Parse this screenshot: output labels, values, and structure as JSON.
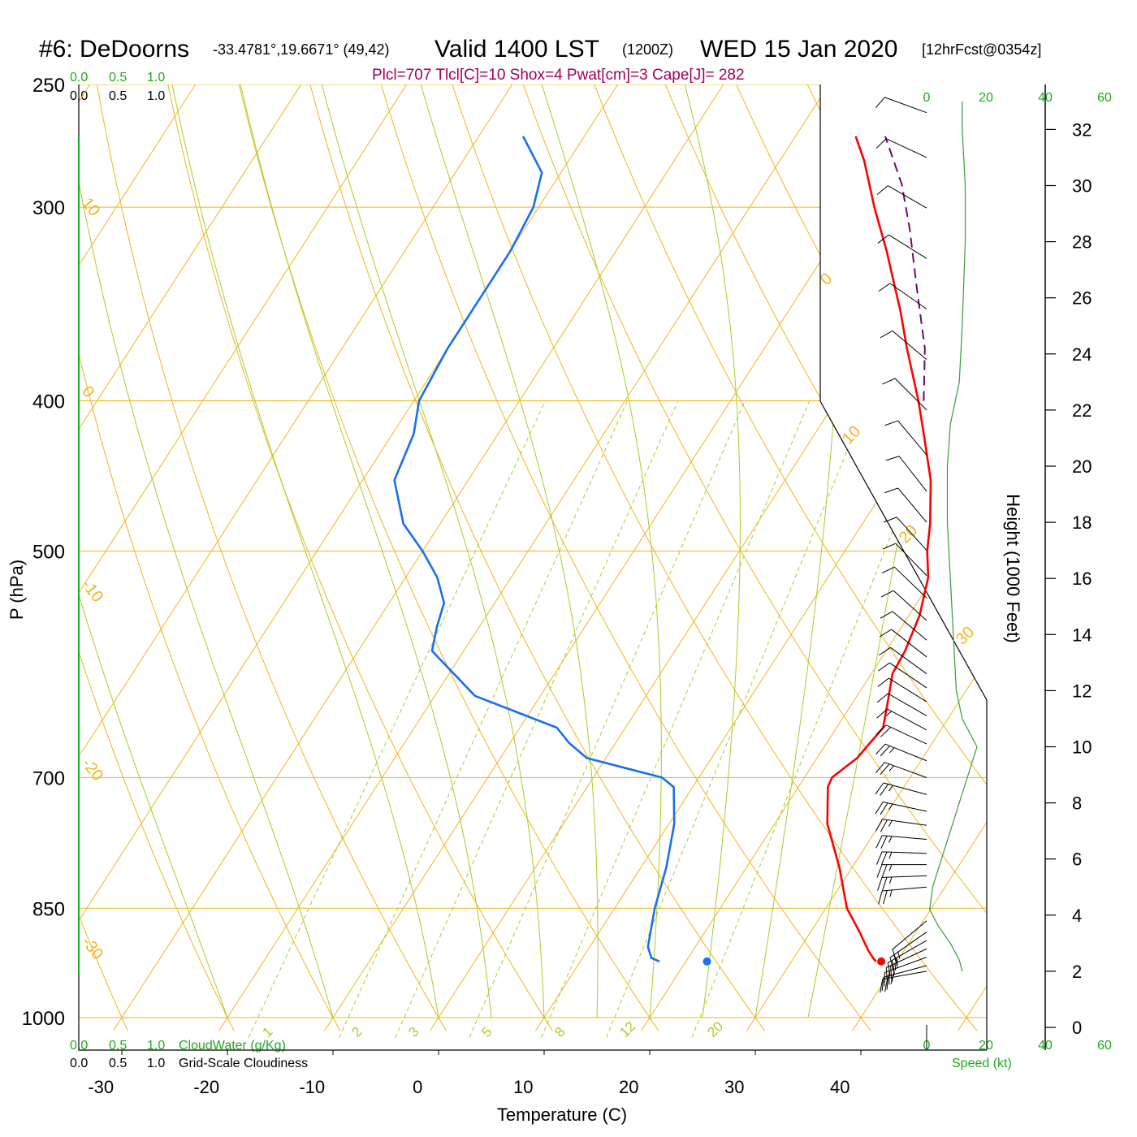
{
  "header": {
    "station": "#6: DeDoorns",
    "coords": "-33.4781°,19.6671° (49,42)",
    "valid": "Valid 1400 LST",
    "zulu": "(1200Z)",
    "date": "WED 15 Jan 2020",
    "forecast": "[12hrFcst@0354z]"
  },
  "indices": "Plcl=707 Tlcl[C]=10 Shox=4 Pwat[cm]=3 Cape[J]= 282",
  "top_scales": {
    "cloudwater_top": [
      "0.0",
      "0.5",
      "1.0"
    ],
    "cloudiness_top": [
      "0.0",
      "0.5",
      "1.0"
    ]
  },
  "bottom_scales": {
    "cloudwater_ticks": [
      "0.0",
      "0.5",
      "1.0"
    ],
    "cloudwater_label": "CloudWater (g/Kg)",
    "cloudiness_ticks": [
      "0.0",
      "0.5",
      "1.0"
    ],
    "cloudiness_label": "Grid-Scale Cloudiness"
  },
  "wind_scale": {
    "ticks": [
      "0",
      "20",
      "40",
      "60"
    ],
    "label": "Speed (kt)"
  },
  "colors": {
    "temperature": "#ff0000",
    "dewpoint": "#1a6ef0",
    "parcel": "#6a0a6a",
    "isotherm": "#f0b41e",
    "dry_adiabat": "#f0b41e",
    "moist_adiabat": "#a8cc28",
    "mixing_ratio": "#a8cc28",
    "cloud_water": "#1faa1f",
    "wind_speed": "#3a9a3a",
    "barbs": "#000000"
  },
  "chart_data": {
    "type": "skew-t log-p sounding",
    "xlabel": "Temperature (C)",
    "ylabel": "P (hPa)",
    "right_axis_label": "Height (1000 Feet)",
    "x_ticks": [
      -30,
      -20,
      -10,
      0,
      10,
      20,
      30,
      40
    ],
    "pressure_ticks": [
      250,
      300,
      400,
      500,
      700,
      850,
      1000
    ],
    "height_ticks": [
      0,
      2,
      4,
      6,
      8,
      10,
      12,
      14,
      16,
      18,
      20,
      22,
      24,
      26,
      28,
      30,
      32
    ],
    "isotherm_labels": [
      -30,
      -20,
      -10,
      0,
      10,
      20,
      30
    ],
    "dry_adiabat_labels": [
      -10,
      0,
      10,
      20,
      30,
      40
    ],
    "mixing_ratio_labels": [
      "1",
      "2",
      "3",
      "5",
      "8",
      "12",
      "20"
    ],
    "temperature": [
      {
        "p": 920,
        "t": 38.0
      },
      {
        "p": 915,
        "t": 37.5
      },
      {
        "p": 905,
        "t": 36.6
      },
      {
        "p": 880,
        "t": 34.6
      },
      {
        "p": 850,
        "t": 32.0
      },
      {
        "p": 800,
        "t": 28.8
      },
      {
        "p": 750,
        "t": 25.0
      },
      {
        "p": 710,
        "t": 22.8
      },
      {
        "p": 700,
        "t": 22.6
      },
      {
        "p": 680,
        "t": 23.8
      },
      {
        "p": 650,
        "t": 24.4
      },
      {
        "p": 620,
        "t": 23.0
      },
      {
        "p": 600,
        "t": 22.0
      },
      {
        "p": 580,
        "t": 21.8
      },
      {
        "p": 550,
        "t": 21.0
      },
      {
        "p": 520,
        "t": 19.5
      },
      {
        "p": 500,
        "t": 17.8
      },
      {
        "p": 480,
        "t": 16.4
      },
      {
        "p": 450,
        "t": 13.8
      },
      {
        "p": 420,
        "t": 10.3
      },
      {
        "p": 400,
        "t": 7.8
      },
      {
        "p": 370,
        "t": 3.5
      },
      {
        "p": 350,
        "t": 0.6
      },
      {
        "p": 320,
        "t": -4.4
      },
      {
        "p": 300,
        "t": -8.2
      },
      {
        "p": 280,
        "t": -12.0
      },
      {
        "p": 270,
        "t": -14.3
      }
    ],
    "dewpoint": [
      {
        "p": 920,
        "t": 17.5
      },
      {
        "p": 915,
        "t": 16.5
      },
      {
        "p": 900,
        "t": 15.5
      },
      {
        "p": 850,
        "t": 13.8
      },
      {
        "p": 800,
        "t": 12.4
      },
      {
        "p": 750,
        "t": 10.5
      },
      {
        "p": 710,
        "t": 8.2
      },
      {
        "p": 700,
        "t": 6.5
      },
      {
        "p": 680,
        "t": -1.8
      },
      {
        "p": 665,
        "t": -4.4
      },
      {
        "p": 650,
        "t": -6.5
      },
      {
        "p": 620,
        "t": -16.2
      },
      {
        "p": 580,
        "t": -23.0
      },
      {
        "p": 560,
        "t": -24.0
      },
      {
        "p": 540,
        "t": -24.8
      },
      {
        "p": 520,
        "t": -27.0
      },
      {
        "p": 500,
        "t": -30.0
      },
      {
        "p": 480,
        "t": -33.5
      },
      {
        "p": 450,
        "t": -37.0
      },
      {
        "p": 420,
        "t": -38.0
      },
      {
        "p": 400,
        "t": -39.5
      },
      {
        "p": 370,
        "t": -40.0
      },
      {
        "p": 340,
        "t": -40.0
      },
      {
        "p": 320,
        "t": -40.0
      },
      {
        "p": 300,
        "t": -40.5
      },
      {
        "p": 285,
        "t": -41.8
      },
      {
        "p": 270,
        "t": -45.8
      }
    ],
    "parcel": [
      {
        "p": 400,
        "t": 8.3
      },
      {
        "p": 370,
        "t": 5.2
      },
      {
        "p": 340,
        "t": 1.0
      },
      {
        "p": 310,
        "t": -3.5
      },
      {
        "p": 290,
        "t": -7.0
      },
      {
        "p": 270,
        "t": -11.5
      }
    ],
    "surface_temperature": {
      "p": 920,
      "t": 38.5
    },
    "surface_dewpoint": {
      "p": 920,
      "t": 22.0
    },
    "wind_barbs": [
      {
        "h": 2.0,
        "spd": 25,
        "dir": 280
      },
      {
        "h": 2.2,
        "spd": 25,
        "dir": 285
      },
      {
        "h": 2.5,
        "spd": 25,
        "dir": 290
      },
      {
        "h": 2.8,
        "spd": 25,
        "dir": 295
      },
      {
        "h": 3.1,
        "spd": 25,
        "dir": 300
      },
      {
        "h": 3.4,
        "spd": 25,
        "dir": 305
      },
      {
        "h": 3.8,
        "spd": 10,
        "dir": 310
      },
      {
        "h": 5.0,
        "spd": 25,
        "dir": 275
      },
      {
        "h": 5.4,
        "spd": 25,
        "dir": 272
      },
      {
        "h": 5.8,
        "spd": 25,
        "dir": 270
      },
      {
        "h": 6.2,
        "spd": 25,
        "dir": 268
      },
      {
        "h": 6.7,
        "spd": 25,
        "dir": 265
      },
      {
        "h": 7.2,
        "spd": 25,
        "dir": 262
      },
      {
        "h": 7.7,
        "spd": 25,
        "dir": 258
      },
      {
        "h": 8.3,
        "spd": 25,
        "dir": 255
      },
      {
        "h": 8.9,
        "spd": 25,
        "dir": 250
      },
      {
        "h": 9.5,
        "spd": 25,
        "dir": 248
      },
      {
        "h": 10.1,
        "spd": 20,
        "dir": 245
      },
      {
        "h": 10.6,
        "spd": 15,
        "dir": 242
      },
      {
        "h": 11.1,
        "spd": 10,
        "dir": 240
      },
      {
        "h": 11.6,
        "spd": 10,
        "dir": 238
      },
      {
        "h": 12.1,
        "spd": 10,
        "dir": 236
      },
      {
        "h": 12.6,
        "spd": 10,
        "dir": 234
      },
      {
        "h": 13.2,
        "spd": 10,
        "dir": 232
      },
      {
        "h": 13.8,
        "spd": 10,
        "dir": 230
      },
      {
        "h": 14.5,
        "spd": 10,
        "dir": 228
      },
      {
        "h": 15.3,
        "spd": 10,
        "dir": 226
      },
      {
        "h": 16.1,
        "spd": 10,
        "dir": 224
      },
      {
        "h": 17.0,
        "spd": 10,
        "dir": 222
      },
      {
        "h": 18.0,
        "spd": 10,
        "dir": 220
      },
      {
        "h": 19.1,
        "spd": 10,
        "dir": 218
      },
      {
        "h": 20.4,
        "spd": 10,
        "dir": 220
      },
      {
        "h": 22.0,
        "spd": 10,
        "dir": 225
      },
      {
        "h": 23.8,
        "spd": 10,
        "dir": 230
      },
      {
        "h": 25.6,
        "spd": 10,
        "dir": 235
      },
      {
        "h": 27.4,
        "spd": 10,
        "dir": 238
      },
      {
        "h": 29.2,
        "spd": 10,
        "dir": 240
      },
      {
        "h": 31.0,
        "spd": 10,
        "dir": 245
      },
      {
        "h": 32.6,
        "spd": 10,
        "dir": 250
      }
    ],
    "wind_speed_profile": [
      {
        "h": 2.0,
        "spd": 12
      },
      {
        "h": 2.4,
        "spd": 11
      },
      {
        "h": 3.0,
        "spd": 8
      },
      {
        "h": 3.6,
        "spd": 4
      },
      {
        "h": 4.2,
        "spd": 1
      },
      {
        "h": 5.0,
        "spd": 2
      },
      {
        "h": 6.0,
        "spd": 5
      },
      {
        "h": 7.0,
        "spd": 8
      },
      {
        "h": 8.0,
        "spd": 11
      },
      {
        "h": 9.0,
        "spd": 14
      },
      {
        "h": 10.0,
        "spd": 17
      },
      {
        "h": 11.0,
        "spd": 12
      },
      {
        "h": 12.0,
        "spd": 10
      },
      {
        "h": 14.0,
        "spd": 9
      },
      {
        "h": 16.0,
        "spd": 8
      },
      {
        "h": 18.0,
        "spd": 7
      },
      {
        "h": 20.0,
        "spd": 7
      },
      {
        "h": 21.5,
        "spd": 8
      },
      {
        "h": 23.0,
        "spd": 11
      },
      {
        "h": 25.0,
        "spd": 12
      },
      {
        "h": 28.0,
        "spd": 13
      },
      {
        "h": 30.0,
        "spd": 13
      },
      {
        "h": 32.0,
        "spd": 12
      },
      {
        "h": 33.0,
        "spd": 12
      }
    ]
  }
}
